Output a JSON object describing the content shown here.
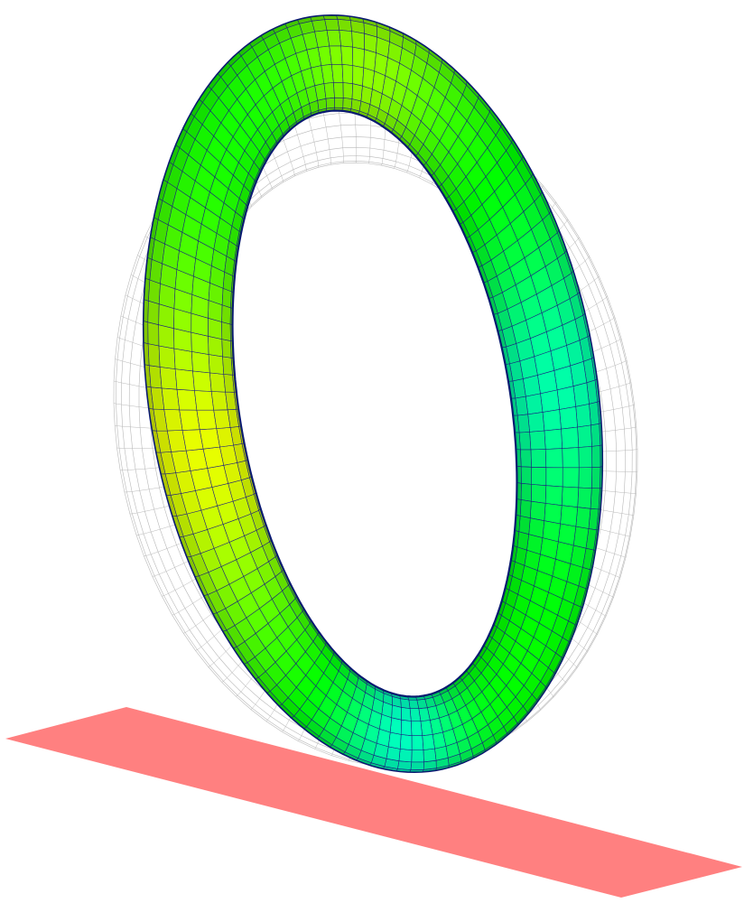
{
  "scene": {
    "background": "#ffffff",
    "ground_plane": {
      "color": "#ff8080"
    },
    "deformed_tire": {
      "edge_color": "#1a1a80",
      "rim_color": "#0a1a70",
      "colormap": [
        "#00ffbf",
        "#00ff80",
        "#00ff40",
        "#00ff00",
        "#40ff00",
        "#80ff00",
        "#bfff00",
        "#ffff00"
      ],
      "mesh": {
        "circumferential_divisions": 108,
        "cross_section_divisions": 8
      }
    },
    "undeformed_outline": {
      "color": "#b9b9b9"
    }
  }
}
